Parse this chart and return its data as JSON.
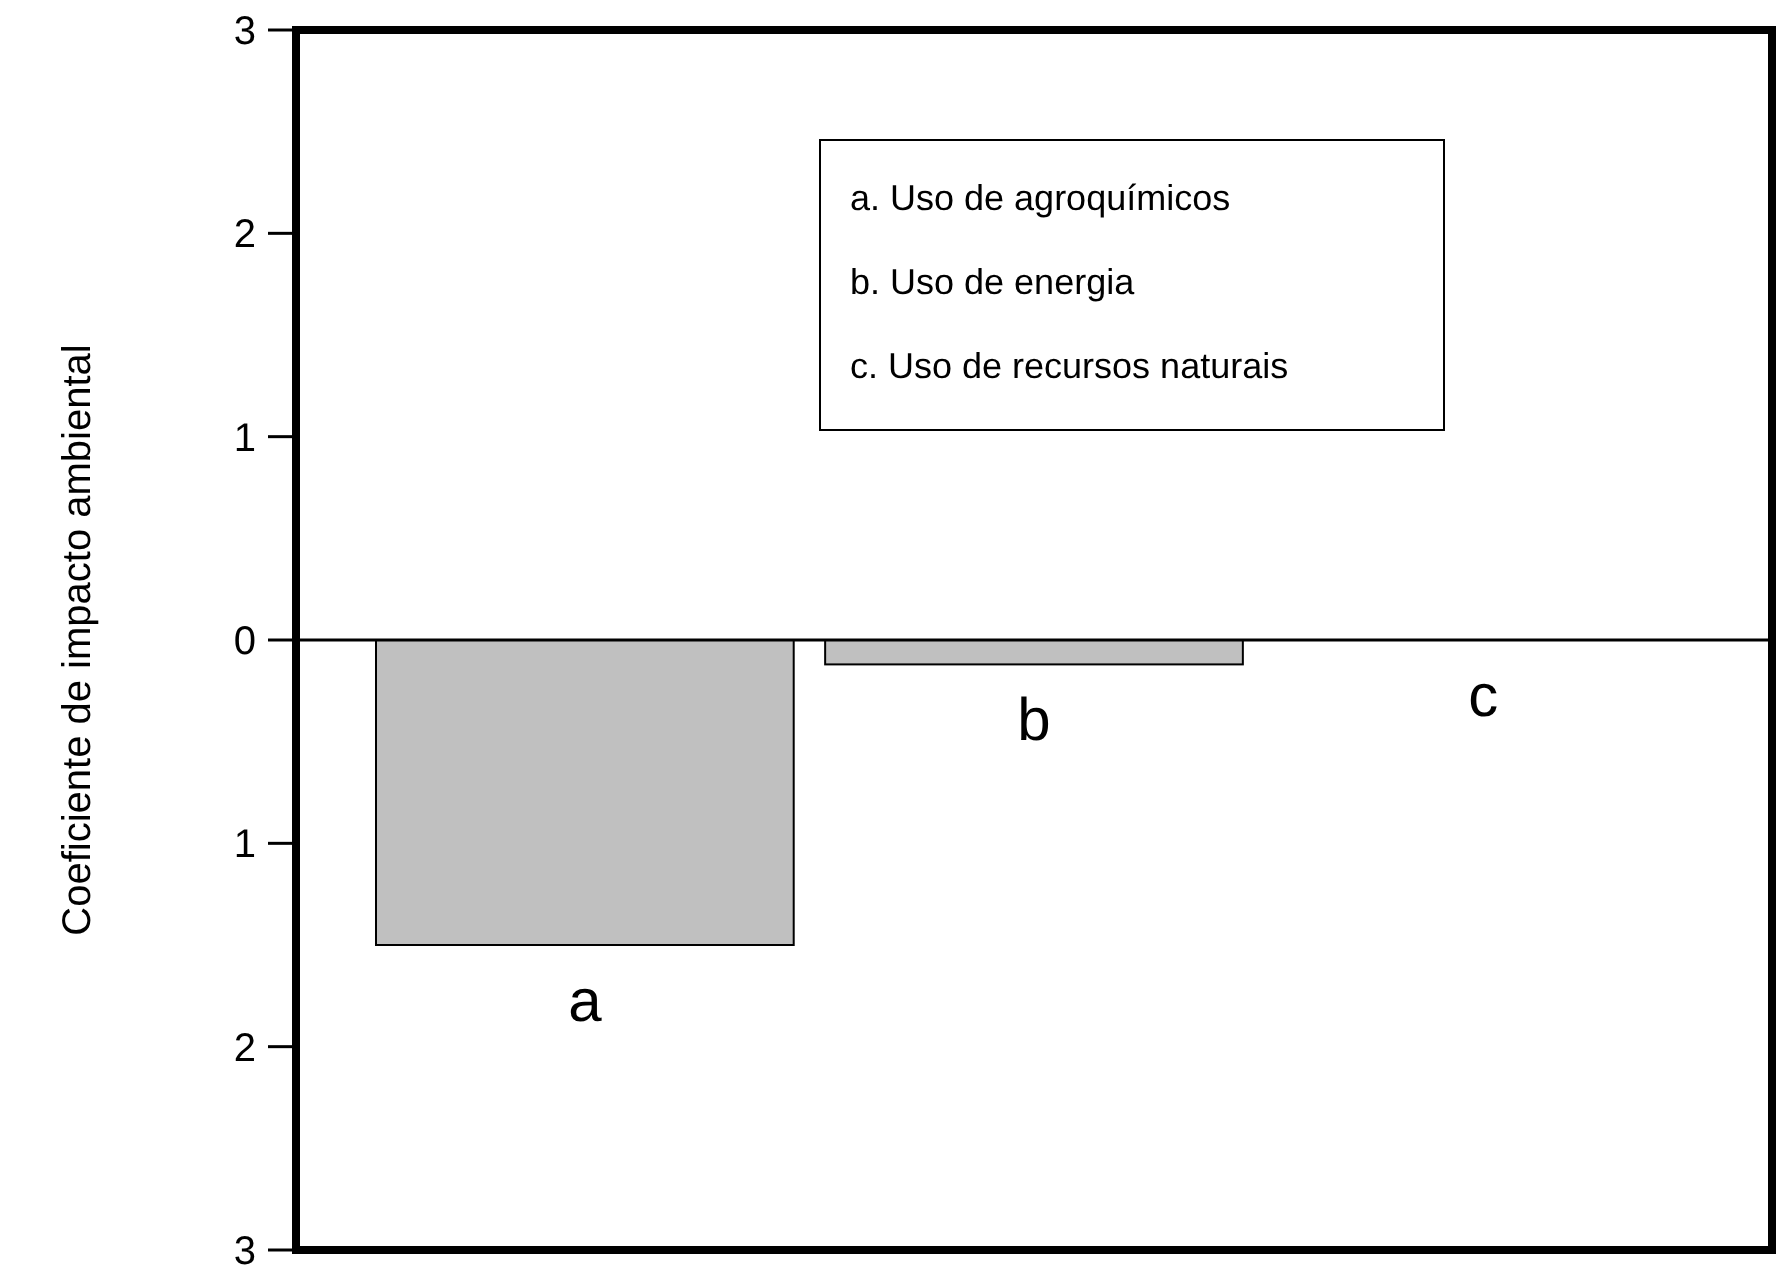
{
  "chart_data": {
    "type": "bar",
    "ylabel": "Coeficiente de impacto ambiental",
    "categories": [
      "a",
      "b",
      "c"
    ],
    "values": [
      -1.5,
      -0.12,
      0
    ],
    "color": "#c0c0c0",
    "ylim": [
      -3,
      3
    ],
    "yticks": [
      {
        "value": -3,
        "label": "3"
      },
      {
        "value": -2,
        "label": "2"
      },
      {
        "value": -1,
        "label": "1"
      },
      0,
      1,
      2,
      3
    ],
    "annotations": [
      "a. Uso de agroquímicos",
      "b. Uso de energia",
      "c. Uso de recursos naturais"
    ]
  }
}
